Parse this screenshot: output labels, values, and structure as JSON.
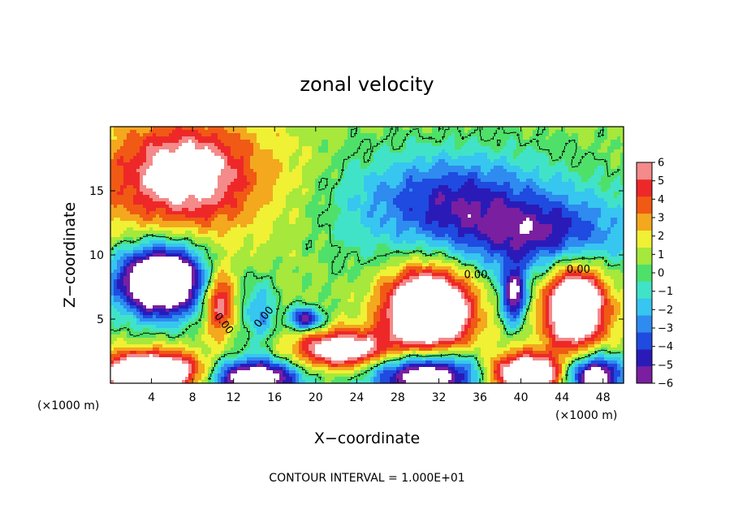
{
  "chart_data": {
    "type": "heatmap",
    "title": "zonal velocity",
    "xlabel": "X−coordinate",
    "ylabel": "Z−coordinate",
    "x_unit_left": "(×1000 m)",
    "x_unit_right": "(×1000 m)",
    "footer": "CONTOUR INTERVAL = 1.000E+01",
    "xlim": [
      0,
      50
    ],
    "ylim": [
      0,
      20
    ],
    "xticks": [
      {
        "value": 4,
        "label": "4"
      },
      {
        "value": 8,
        "label": "8"
      },
      {
        "value": 12,
        "label": "12"
      },
      {
        "value": 16,
        "label": "16"
      },
      {
        "value": 20,
        "label": "20"
      },
      {
        "value": 24,
        "label": "24"
      },
      {
        "value": 28,
        "label": "28"
      },
      {
        "value": 32,
        "label": "32"
      },
      {
        "value": 36,
        "label": "36"
      },
      {
        "value": 40,
        "label": "40"
      },
      {
        "value": 44,
        "label": "44"
      },
      {
        "value": 48,
        "label": "48"
      }
    ],
    "yticks": [
      {
        "value": 5,
        "label": "5"
      },
      {
        "value": 10,
        "label": "10"
      },
      {
        "value": 15,
        "label": "15"
      }
    ],
    "colorbar": {
      "range": [
        -6,
        6
      ],
      "ticks": [
        {
          "value": 6,
          "label": "6"
        },
        {
          "value": 5,
          "label": "5"
        },
        {
          "value": 4,
          "label": "4"
        },
        {
          "value": 3,
          "label": "3"
        },
        {
          "value": 2,
          "label": "2"
        },
        {
          "value": 1,
          "label": "1"
        },
        {
          "value": 0,
          "label": "0"
        },
        {
          "value": -1,
          "label": "−1"
        },
        {
          "value": -2,
          "label": "−2"
        },
        {
          "value": -3,
          "label": "−3"
        },
        {
          "value": -4,
          "label": "−4"
        },
        {
          "value": -5,
          "label": "−5"
        },
        {
          "value": -6,
          "label": "−6"
        }
      ]
    },
    "contour_labels": [
      {
        "text": "0.00",
        "x": 10.8,
        "z": 4.5,
        "angle": 52
      },
      {
        "text": "0.00",
        "x": 15.2,
        "z": 5.0,
        "angle": -50
      },
      {
        "text": "0.00",
        "x": 35.6,
        "z": 8.2,
        "angle": 0
      },
      {
        "text": "0.00",
        "x": 45.6,
        "z": 8.6,
        "angle": 0
      }
    ],
    "field_features": [
      {
        "kind": "positive",
        "x": 7.5,
        "z": 16.5,
        "rx": 5.5,
        "rz": 3.5,
        "amp": 4.8
      },
      {
        "kind": "positive",
        "x": 6.5,
        "z": 15.5,
        "rx": 12,
        "rz": 5.5,
        "amp": 2.8
      },
      {
        "kind": "negative",
        "x": 33,
        "z": 14.5,
        "rx": 8,
        "rz": 3.5,
        "amp": -3.8
      },
      {
        "kind": "negative",
        "x": 42,
        "z": 11.5,
        "rx": 8,
        "rz": 2.8,
        "amp": -4.4
      },
      {
        "kind": "negative",
        "x": 37,
        "z": 13,
        "rx": 16,
        "rz": 5,
        "amp": -2.3
      },
      {
        "kind": "positive",
        "x": 24,
        "z": 14,
        "rx": 4,
        "rz": 6,
        "amp": -0.6
      },
      {
        "kind": "negative",
        "x": 5,
        "z": 8,
        "rx": 4.5,
        "rz": 2.8,
        "amp": -13
      },
      {
        "kind": "positive",
        "x": 10.5,
        "z": 6.5,
        "rx": 1.6,
        "rz": 2.6,
        "amp": 6.5
      },
      {
        "kind": "negative",
        "x": 14.5,
        "z": 5.5,
        "rx": 1.6,
        "rz": 2.6,
        "amp": -3.5
      },
      {
        "kind": "negative",
        "x": 19,
        "z": 5.0,
        "rx": 1.6,
        "rz": 0.9,
        "amp": -7
      },
      {
        "kind": "positive",
        "x": 22.5,
        "z": 2.6,
        "rx": 4.5,
        "rz": 1.5,
        "amp": 8
      },
      {
        "kind": "positive",
        "x": 31,
        "z": 5.8,
        "rx": 4.2,
        "rz": 3.2,
        "amp": 12
      },
      {
        "kind": "negative",
        "x": 39.3,
        "z": 6.8,
        "rx": 1.3,
        "rz": 2.2,
        "amp": -7.5
      },
      {
        "kind": "positive",
        "x": 45.3,
        "z": 6.0,
        "rx": 3.0,
        "rz": 3.2,
        "amp": 11
      },
      {
        "kind": "positive",
        "x": 4,
        "z": 0.8,
        "rx": 5,
        "rz": 1.6,
        "amp": 11
      },
      {
        "kind": "negative",
        "x": 14,
        "z": 0.4,
        "rx": 4.5,
        "rz": 1.5,
        "amp": -10
      },
      {
        "kind": "negative",
        "x": 31,
        "z": 0.6,
        "rx": 5.5,
        "rz": 1.7,
        "amp": -10
      },
      {
        "kind": "positive",
        "x": 40.5,
        "z": 0.7,
        "rx": 4,
        "rz": 1.6,
        "amp": 10
      },
      {
        "kind": "negative",
        "x": 47,
        "z": 0.6,
        "rx": 3,
        "rz": 1.6,
        "amp": -10
      }
    ]
  }
}
